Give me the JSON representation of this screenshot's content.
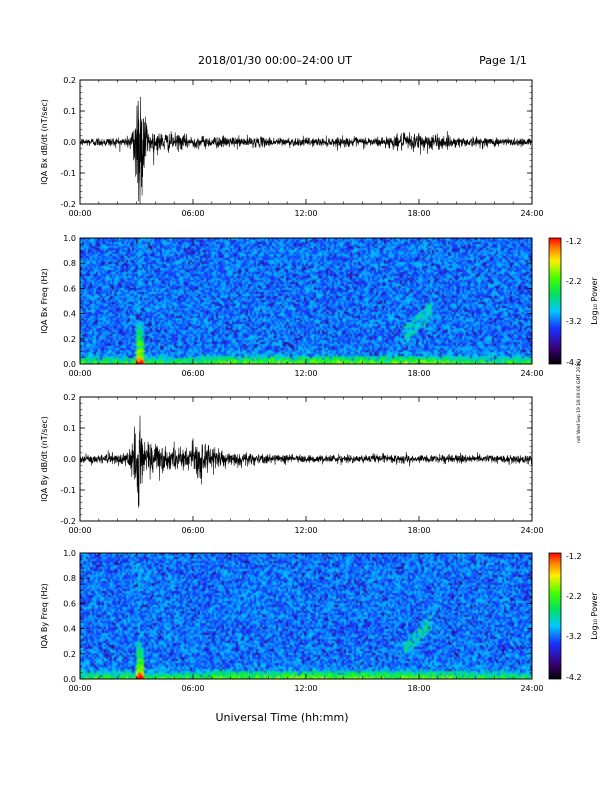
{
  "header": {
    "title": "2018/01/30  00:00–24:00 UT",
    "page": "Page 1/1"
  },
  "footer": {
    "xlabel": "Universal Time (hh:mm)"
  },
  "side_stamp": "ndr Wed Sep 19 18:09:06 GMT 2018",
  "colorbar": {
    "label": "Log₁₀ Power",
    "ticks": [
      "-1.2",
      "-2.2",
      "-3.2",
      "-4.2"
    ],
    "range": [
      -4.2,
      -1.2
    ]
  },
  "chart_data": [
    {
      "type": "line",
      "ylabel": "IQA Bx dB/dt (nT/sec)",
      "xlim": [
        0,
        24
      ],
      "ylim": [
        -0.2,
        0.2
      ],
      "x_ticks": [
        "00:00",
        "06:00",
        "12:00",
        "18:00",
        "24:00"
      ],
      "y_ticks": [
        "0.2",
        "0.1",
        "0.0",
        "-0.1",
        "-0.2"
      ],
      "y_tick_values": [
        0.2,
        0.1,
        0.0,
        -0.1,
        -0.2
      ],
      "noise_envelope": [
        {
          "t": 0.0,
          "amp": 0.012
        },
        {
          "t": 2.5,
          "amp": 0.015
        },
        {
          "t": 2.8,
          "amp": 0.04
        },
        {
          "t": 3.0,
          "amp": 0.2
        },
        {
          "t": 3.3,
          "amp": 0.2
        },
        {
          "t": 3.6,
          "amp": 0.035
        },
        {
          "t": 6.0,
          "amp": 0.018
        },
        {
          "t": 12.0,
          "amp": 0.012
        },
        {
          "t": 16.0,
          "amp": 0.015
        },
        {
          "t": 18.0,
          "amp": 0.03
        },
        {
          "t": 20.0,
          "amp": 0.015
        },
        {
          "t": 24.0,
          "amp": 0.012
        }
      ]
    },
    {
      "type": "heatmap",
      "ylabel": "IQA Bx Freq (Hz)",
      "xlim": [
        0,
        24
      ],
      "ylim": [
        0,
        1.0
      ],
      "x_ticks": [
        "00:00",
        "06:00",
        "12:00",
        "18:00",
        "24:00"
      ],
      "y_ticks": [
        "1.0",
        "0.8",
        "0.6",
        "0.4",
        "0.2",
        "0.0"
      ],
      "y_tick_values": [
        1.0,
        0.8,
        0.6,
        0.4,
        0.2,
        0.0
      ],
      "features": [
        {
          "kind": "burst",
          "t": 3.1,
          "fmax": 0.35
        },
        {
          "kind": "patch",
          "t0": 17.2,
          "t1": 18.7,
          "f0": 0.22,
          "f1": 0.42
        }
      ]
    },
    {
      "type": "line",
      "ylabel": "IQA By dB/dt (nT/sec)",
      "xlim": [
        0,
        24
      ],
      "ylim": [
        -0.2,
        0.2
      ],
      "x_ticks": [
        "00:00",
        "06:00",
        "12:00",
        "18:00",
        "24:00"
      ],
      "y_ticks": [
        "0.2",
        "0.1",
        "0.0",
        "-0.1",
        "-0.2"
      ],
      "y_tick_values": [
        0.2,
        0.1,
        0.0,
        -0.1,
        -0.2
      ],
      "noise_envelope": [
        {
          "t": 0.0,
          "amp": 0.012
        },
        {
          "t": 2.5,
          "amp": 0.018
        },
        {
          "t": 2.8,
          "amp": 0.06
        },
        {
          "t": 3.1,
          "amp": 0.2
        },
        {
          "t": 3.4,
          "amp": 0.06
        },
        {
          "t": 5.5,
          "amp": 0.03
        },
        {
          "t": 6.5,
          "amp": 0.06
        },
        {
          "t": 7.5,
          "amp": 0.02
        },
        {
          "t": 12.0,
          "amp": 0.012
        },
        {
          "t": 24.0,
          "amp": 0.012
        }
      ]
    },
    {
      "type": "heatmap",
      "ylabel": "IQA By Freq (Hz)",
      "xlim": [
        0,
        24
      ],
      "ylim": [
        0,
        1.0
      ],
      "x_ticks": [
        "00:00",
        "06:00",
        "12:00",
        "18:00",
        "24:00"
      ],
      "y_ticks": [
        "1.0",
        "0.8",
        "0.6",
        "0.4",
        "0.2",
        "0.0"
      ],
      "y_tick_values": [
        1.0,
        0.8,
        0.6,
        0.4,
        0.2,
        0.0
      ],
      "features": [
        {
          "kind": "burst",
          "t": 3.1,
          "fmax": 0.3
        },
        {
          "kind": "patch",
          "t0": 17.2,
          "t1": 18.7,
          "f0": 0.22,
          "f1": 0.45
        }
      ]
    }
  ]
}
